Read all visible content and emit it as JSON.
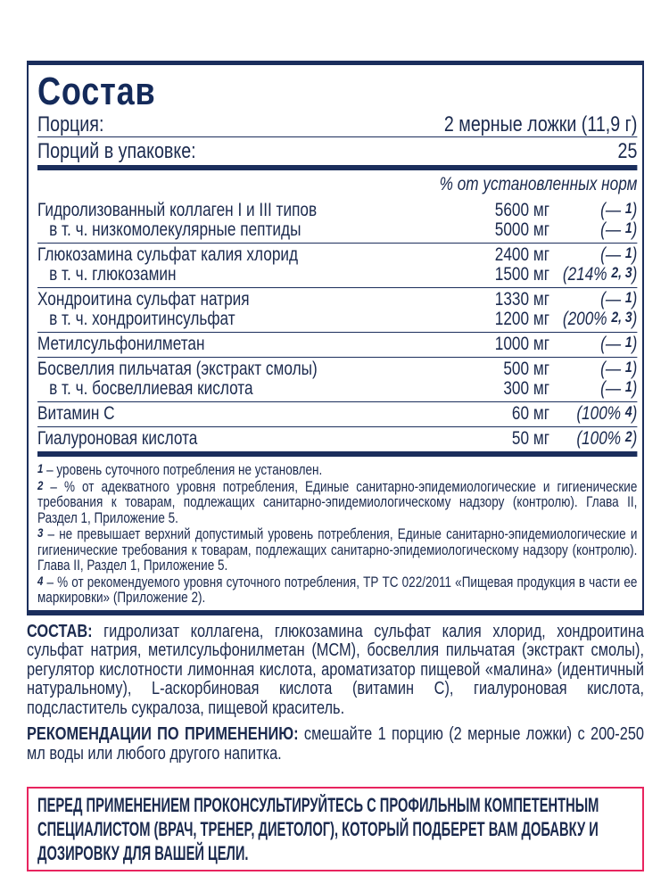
{
  "title": "Состав",
  "serving": {
    "label": "Порция:",
    "value": "2 мерные ложки (11,9 г)"
  },
  "servings": {
    "label": "Порций в упаковке:",
    "value": "25"
  },
  "norms_header": "% от установленных норм",
  "groups": [
    {
      "lines": [
        {
          "name": "Гидролизованный коллаген I и III типов",
          "amount": "5600 мг",
          "pct": "(—",
          "ref": "1"
        },
        {
          "name": "в т. ч. низкомолекулярные пептиды",
          "amount": "5000 мг",
          "pct": "(—",
          "ref": "1"
        }
      ]
    },
    {
      "lines": [
        {
          "name": "Глюкозамина сульфат калия хлорид",
          "amount": "2400 мг",
          "pct": "(—",
          "ref": "1"
        },
        {
          "name": "в т. ч. глюкозамин",
          "amount": "1500 мг",
          "pct": "(214%",
          "ref": "2, 3"
        }
      ]
    },
    {
      "lines": [
        {
          "name": "Хондроитина сульфат натрия",
          "amount": "1330 мг",
          "pct": "(—",
          "ref": "1"
        },
        {
          "name": "в т. ч. хондроитинсульфат",
          "amount": "1200 мг",
          "pct": "(200%",
          "ref": "2, 3"
        }
      ]
    },
    {
      "lines": [
        {
          "name": "Метилсульфонилметан",
          "amount": "1000 мг",
          "pct": "(—",
          "ref": "1"
        }
      ]
    },
    {
      "lines": [
        {
          "name": "Босвеллия пильчатая (экстракт смолы)",
          "amount": "500 мг",
          "pct": "(—",
          "ref": "1"
        },
        {
          "name": "в т. ч. босвеллиевая кислота",
          "amount": "300 мг",
          "pct": "(—",
          "ref": "1"
        }
      ]
    },
    {
      "lines": [
        {
          "name": "Витамин С",
          "amount": "60 мг",
          "pct": "(100%",
          "ref": "4"
        }
      ]
    },
    {
      "lines": [
        {
          "name": "Гиалуроновая кислота",
          "amount": "50 мг",
          "pct": "(100%",
          "ref": "2"
        }
      ]
    }
  ],
  "footnotes": [
    {
      "n": "1",
      "text": " – уровень суточного потребления не установлен."
    },
    {
      "n": "2",
      "text": " – % от адекватного уровня потребления, Единые санитарно-эпидемиологические и гигиенические требования к товарам, подлежащих санитарно-эпидемиологическому надзору (контролю). Глава II, Раздел 1, Приложение 5."
    },
    {
      "n": "3",
      "text": " – не превышает верхний допустимый уровень потребления, Единые санитарно-эпидемиологические и гигиенические требования к товарам, подлежащих санитарно-эпидемиологическому надзору (контролю). Глава II, Раздел 1, Приложение 5."
    },
    {
      "n": "4",
      "text": " – % от рекомендуемого уровня суточного потребления, ТР ТС 022/2011 «Пищевая продукция в части ее маркировки» (Приложение 2)."
    }
  ],
  "composition": {
    "label": "СОСТАВ:",
    "text": " гидролизат коллагена, глюкозамина сульфат калия хлорид, хондроитина сульфат натрия, метилсульфонилметан (МСМ), босвеллия пильчатая (экстракт смолы), регулятор кислотности лимонная кислота, ароматизатор пищевой «малина» (идентичный натуральному), L-аскорбиновая кислота (витамин С), гиалуроновая кислота, подсластитель сукралоза, пищевой краситель."
  },
  "usage": {
    "label": "РЕКОМЕНДАЦИИ ПО ПРИМЕНЕНИЮ:",
    "text": " смешайте 1 порцию (2 мерные ложки) с 200-250 мл воды или любого другого напитка."
  },
  "warning": "Перед применением проконсультируйтесь с профильным компетентным специалистом (врач, тренер, диетолог), который подберет вам добавку и дозировку для вашей цели.",
  "colors": {
    "navy": "#1b2e5c",
    "warning_border": "#e8245f"
  }
}
